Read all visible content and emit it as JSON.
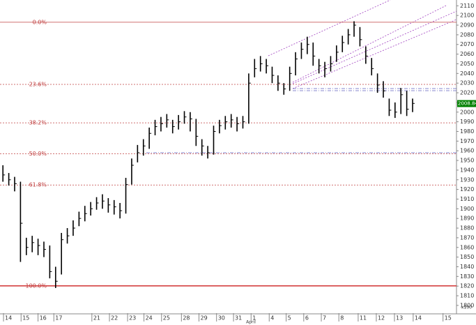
{
  "chart_data": {
    "type": "ohlc",
    "color": "#000000",
    "x": [
      0.5,
      1.5,
      2.5,
      3.5,
      4.5,
      5.5,
      6.5,
      7.5,
      8.5,
      9.5,
      10.5,
      11.5,
      12.5,
      13.5,
      14.5,
      15.5,
      16.5,
      17.5,
      18.5,
      19.5,
      20.5,
      21.5,
      22.5,
      23.5,
      24.5,
      25.5,
      26.5,
      27.5,
      28.5,
      29.5,
      30.5,
      31.5,
      32.5,
      33.5,
      34.5,
      35.5,
      36.5,
      37.5,
      38.5,
      39.5,
      40.5,
      41.5,
      42.5,
      43.5,
      44.5,
      45.5,
      46.5,
      47.5,
      48.5,
      49.5,
      50.5,
      51.5,
      52.5,
      53.5,
      54.5,
      55.5,
      56.5,
      57.5,
      58.5,
      59.5,
      60.5,
      61.5,
      62.5,
      63.5,
      64.5,
      65.5,
      66.5,
      67.5,
      68.5,
      69.5,
      70.5
    ],
    "high": [
      1945,
      1937,
      1933,
      1928,
      1870,
      1872,
      1869,
      1866,
      1862,
      1840,
      1875,
      1880,
      1888,
      1897,
      1903,
      1907,
      1912,
      1915,
      1911,
      1909,
      1906,
      1932,
      1952,
      1966,
      1972,
      1984,
      1992,
      1995,
      1998,
      1992,
      1997,
      2001,
      2000,
      1993,
      1972,
      1965,
      1986,
      1992,
      1996,
      1998,
      1995,
      1996,
      2040,
      2055,
      2058,
      2055,
      2047,
      2038,
      2030,
      2047,
      2062,
      2072,
      2078,
      2072,
      2055,
      2052,
      2058,
      2069,
      2079,
      2086,
      2094,
      2088,
      2068,
      2056,
      2040,
      2032,
      2014,
      2010,
      2025,
      2022,
      2014
    ],
    "low": [
      1928,
      1924,
      1918,
      1845,
      1852,
      1855,
      1852,
      1850,
      1828,
      1818,
      1832,
      1864,
      1872,
      1882,
      1887,
      1893,
      1899,
      1900,
      1896,
      1894,
      1890,
      1895,
      1925,
      1948,
      1955,
      1962,
      1976,
      1980,
      1984,
      1978,
      1982,
      1988,
      1980,
      1965,
      1955,
      1952,
      1956,
      1978,
      1982,
      1984,
      1980,
      1983,
      1988,
      2036,
      2042,
      2040,
      2030,
      2022,
      2018,
      2022,
      2038,
      2055,
      2060,
      2048,
      2040,
      2036,
      2042,
      2052,
      2062,
      2070,
      2078,
      2068,
      2050,
      2038,
      2020,
      2015,
      1996,
      1994,
      1998,
      1996,
      2000
    ],
    "close": [
      1935,
      1930,
      1926,
      1885,
      1860,
      1865,
      1862,
      1858,
      1835,
      1825,
      1868,
      1872,
      1880,
      1890,
      1895,
      1900,
      1906,
      1908,
      1904,
      1902,
      1898,
      1925,
      1945,
      1958,
      1965,
      1978,
      1985,
      1988,
      1992,
      1985,
      1990,
      1995,
      1993,
      1975,
      1965,
      1958,
      1980,
      1986,
      1990,
      1992,
      1988,
      1990,
      2030,
      2045,
      2050,
      2048,
      2038,
      2030,
      2024,
      2040,
      2055,
      2065,
      2070,
      2058,
      2048,
      2045,
      2050,
      2062,
      2072,
      2080,
      2090,
      2075,
      2058,
      2045,
      2028,
      2022,
      2002,
      2000,
      2018,
      2003,
      2009
    ],
    "xlim": [
      0,
      78
    ],
    "xticks": [
      {
        "value": 0.6,
        "label": "14"
      },
      {
        "value": 3.6,
        "label": "15"
      },
      {
        "value": 6.5,
        "label": "16"
      },
      {
        "value": 9.2,
        "label": "17"
      },
      {
        "value": 15.7,
        "label": "21"
      },
      {
        "value": 18.7,
        "label": "22"
      },
      {
        "value": 21.8,
        "label": "23"
      },
      {
        "value": 24.6,
        "label": "24"
      },
      {
        "value": 27.6,
        "label": "25"
      },
      {
        "value": 31,
        "label": "28"
      },
      {
        "value": 34,
        "label": "29"
      },
      {
        "value": 37,
        "label": "30"
      },
      {
        "value": 39.9,
        "label": "31"
      },
      {
        "value": 42.9,
        "label": "1"
      },
      {
        "value": 46,
        "label": "4"
      },
      {
        "value": 48.9,
        "label": "5"
      },
      {
        "value": 51.9,
        "label": "6"
      },
      {
        "value": 54.9,
        "label": "7"
      },
      {
        "value": 57.9,
        "label": "8"
      },
      {
        "value": 61.2,
        "label": "11"
      },
      {
        "value": 64.3,
        "label": "12"
      },
      {
        "value": 67.4,
        "label": "13"
      },
      {
        "value": 70.6,
        "label": "14"
      },
      {
        "value": 75.7,
        "label": "15"
      }
    ],
    "month_label": "April",
    "ylim": [
      1792,
      2116
    ],
    "yticks": [
      1800,
      1810,
      1820,
      1830,
      1840,
      1850,
      1860,
      1870,
      1880,
      1890,
      1900,
      1910,
      1920,
      1930,
      1940,
      1950,
      1960,
      1970,
      1980,
      1990,
      2000,
      2010,
      2020,
      2030,
      2040,
      2050,
      2060,
      2070,
      2080,
      2090,
      2100,
      2110
    ],
    "fib_levels": [
      {
        "label": "0.0%",
        "value": 2093
      },
      {
        "label": "23.6%",
        "value": 2028.7
      },
      {
        "label": "38.2%",
        "value": 1988.9
      },
      {
        "label": "50.0%",
        "value": 1956.8
      },
      {
        "label": "61.8%",
        "value": 1924.6
      },
      {
        "label": "100.0%",
        "value": 1820.2
      }
    ],
    "last_price": {
      "value": 2008.84,
      "label": "2008.84"
    },
    "scale_label": "x100"
  }
}
